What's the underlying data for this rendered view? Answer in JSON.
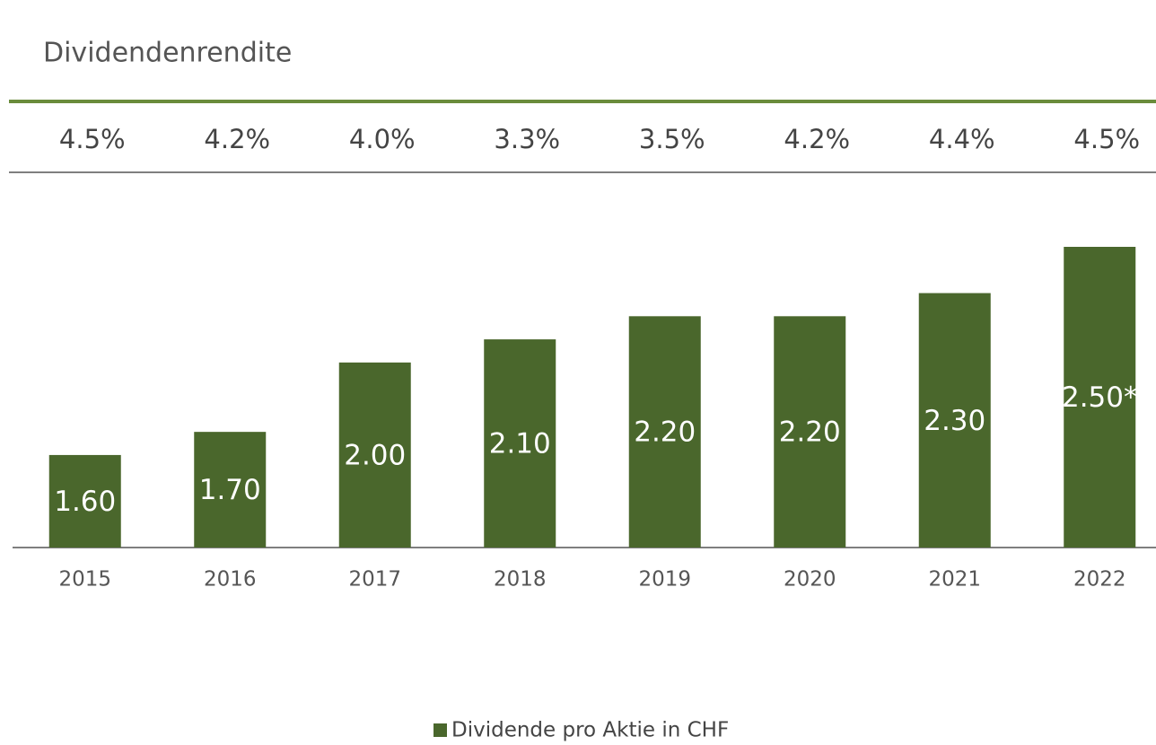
{
  "chart_data": {
    "type": "bar",
    "yield_title": "Dividendenrendite",
    "yields": [
      4.5,
      4.2,
      4.0,
      3.3,
      3.5,
      4.2,
      4.4,
      4.5
    ],
    "yield_labels": [
      "4.5%",
      "4.2%",
      "4.0%",
      "3.3%",
      "3.5%",
      "4.2%",
      "4.4%",
      "4.5%"
    ],
    "categories": [
      "2015",
      "2016",
      "2017",
      "2018",
      "2019",
      "2020",
      "2021",
      "2022"
    ],
    "series": [
      {
        "name": "Dividende pro Aktie in CHF",
        "color": "#4a672c",
        "values": [
          1.6,
          1.7,
          2.0,
          2.1,
          2.2,
          2.2,
          2.3,
          2.5
        ],
        "value_labels": [
          "1.60",
          "1.70",
          "2.00",
          "2.10",
          "2.20",
          "2.20",
          "2.30",
          "2.50*"
        ]
      }
    ],
    "ylim": [
      1.2,
      2.5
    ],
    "accent_color": "#6a8c3c"
  }
}
